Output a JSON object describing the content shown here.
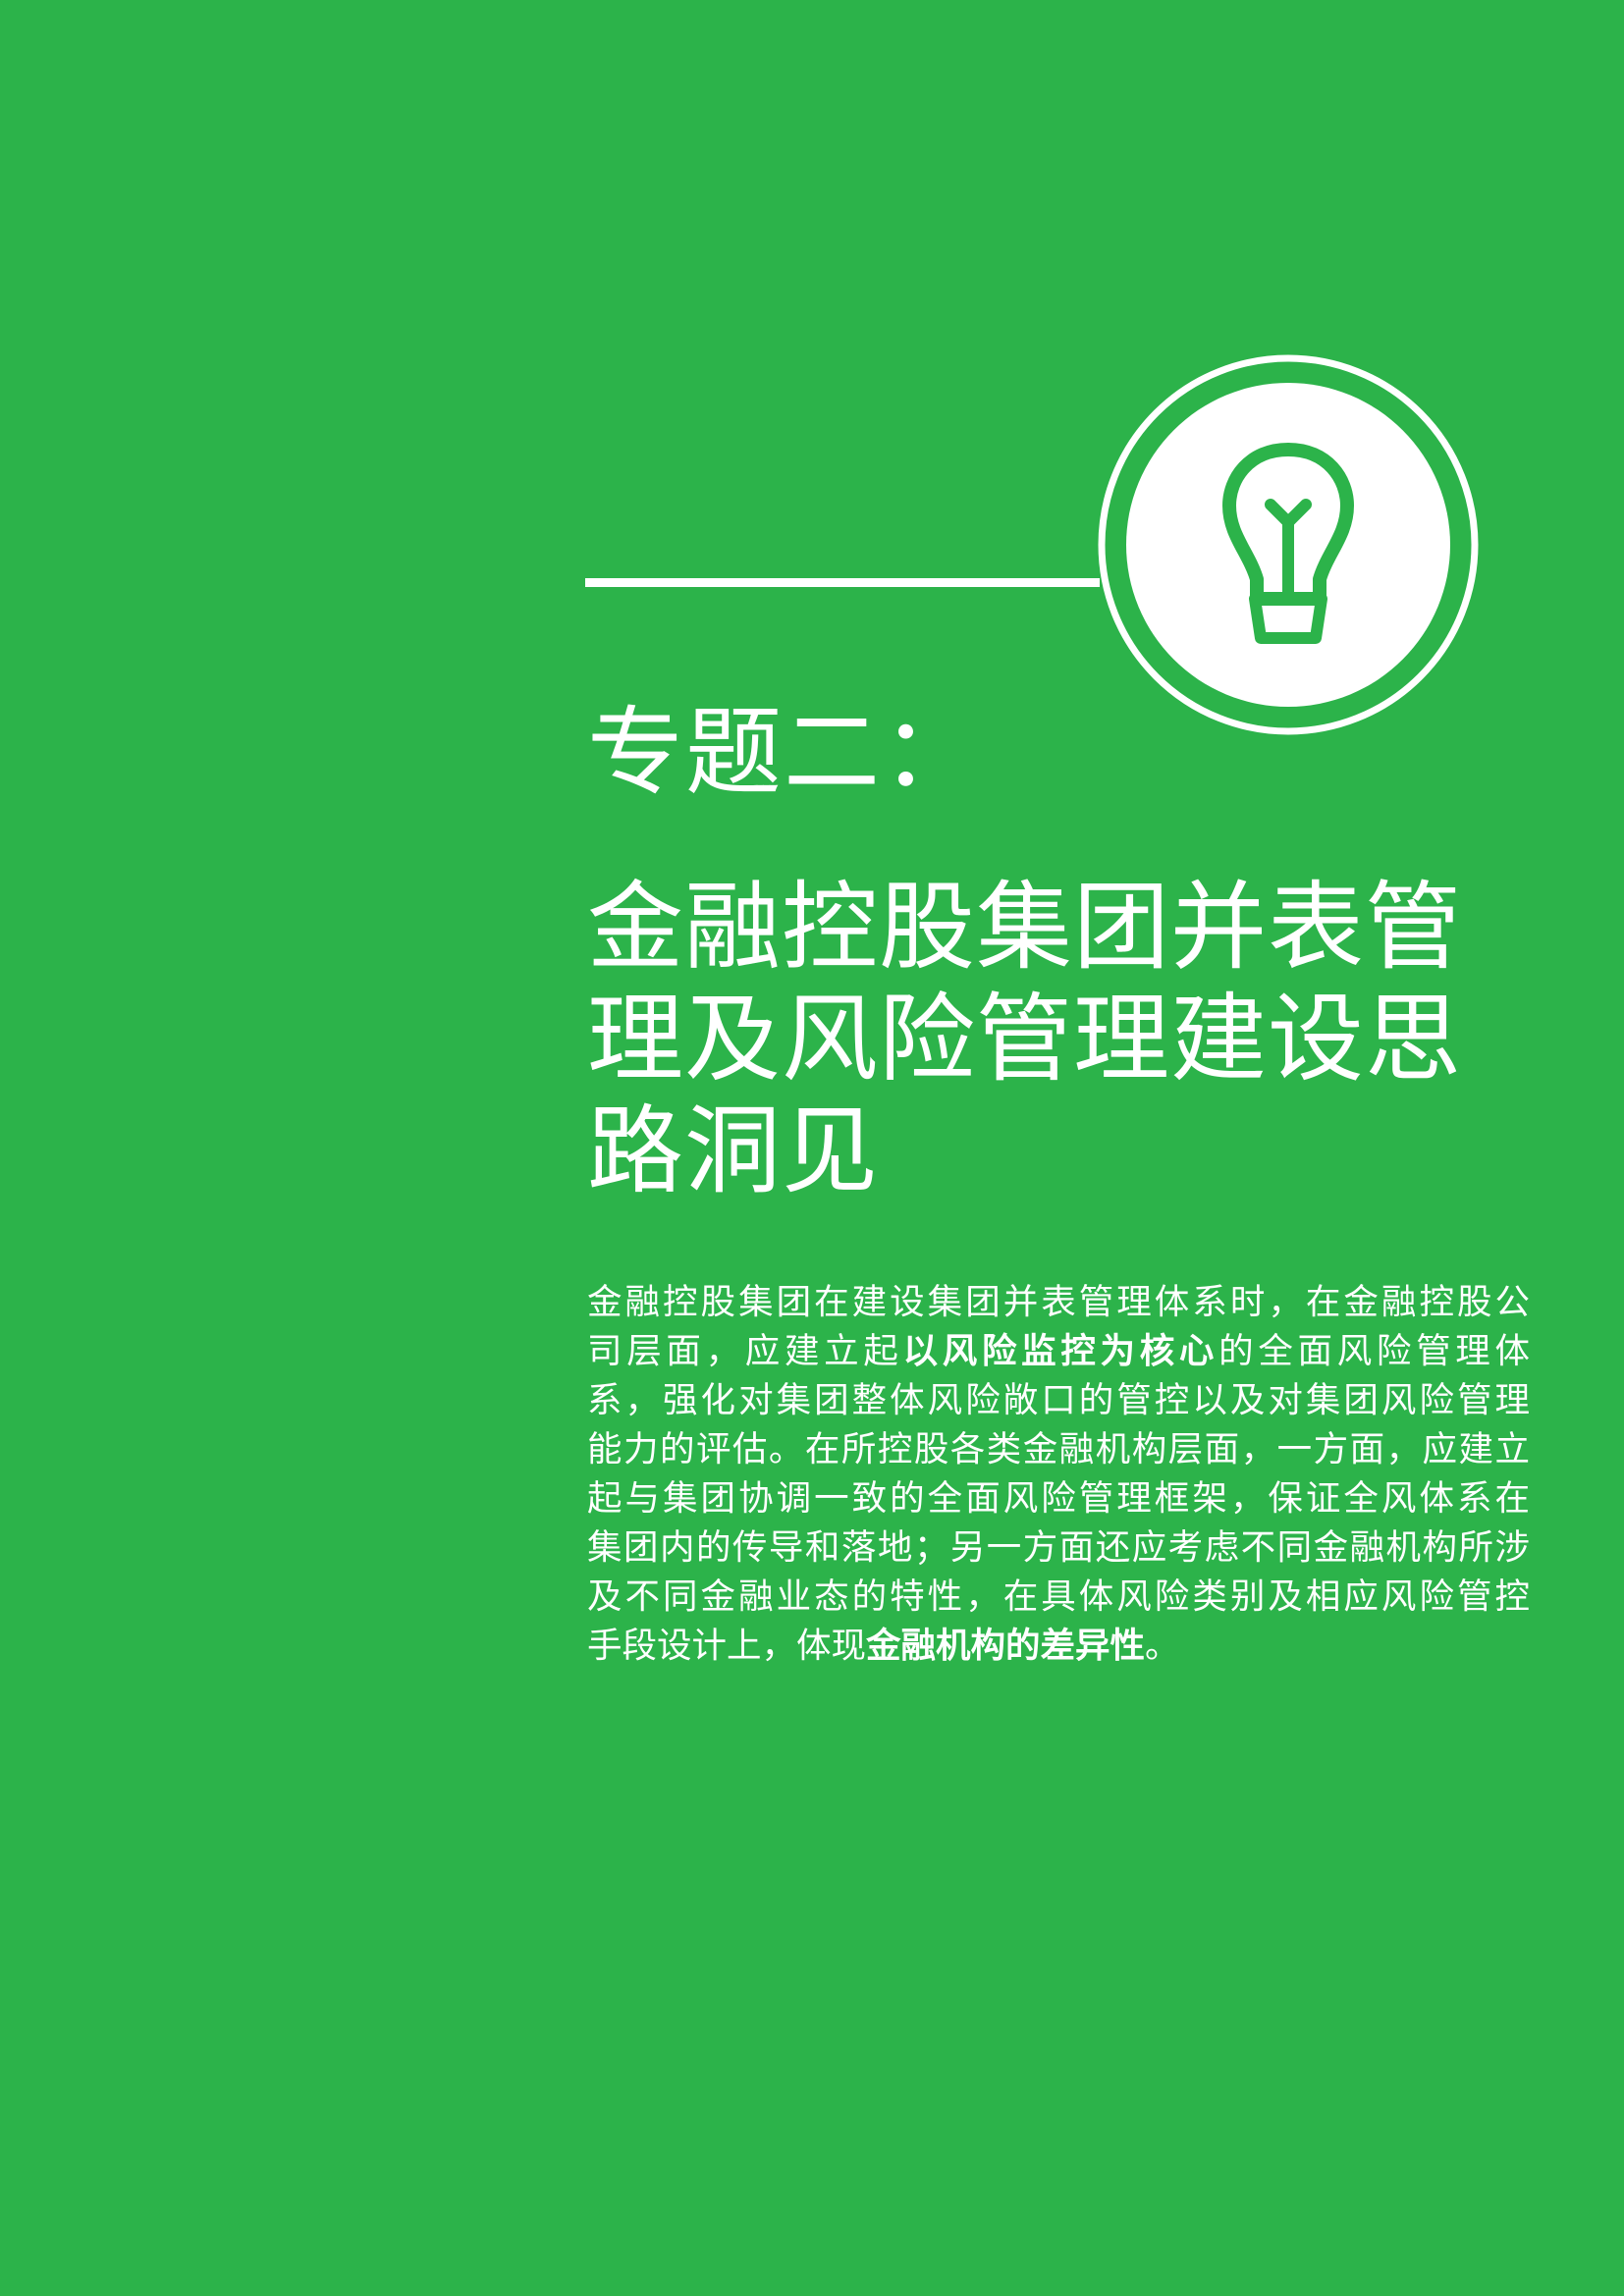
{
  "colors": {
    "background": "#2cb34a",
    "foreground": "#ffffff"
  },
  "icon": "lightbulb-icon",
  "heading": {
    "eyebrow": "专题二：",
    "title_lines": [
      "金融控股集团并表管",
      "理及风险管理建设思",
      "路洞见"
    ]
  },
  "body": {
    "line1": "金融控股集团在建设集团并表管理体系时，在金融控股公",
    "line2_pre": "司层面，应建立起",
    "line2_bold": "以风险监控为核心",
    "line2_post": "的全面风险管理体",
    "line3": "系，强化对集团整体风险敞口的管控以及对集团风险管理",
    "line4": "能力的评估。在所控股各类金融机构层面，一方面，应建立",
    "line5": "起与集团协调一致的全面风险管理框架，保证全风体系在",
    "line6": "集团内的传导和落地；另一方面还应考虑不同金融机构所涉",
    "line7": "及不同金融业态的特性，在具体风险类别及相应风险管控",
    "line8_pre": "手段设计上，体现",
    "line8_bold": "金融机构的差异性",
    "line8_post": "。"
  }
}
